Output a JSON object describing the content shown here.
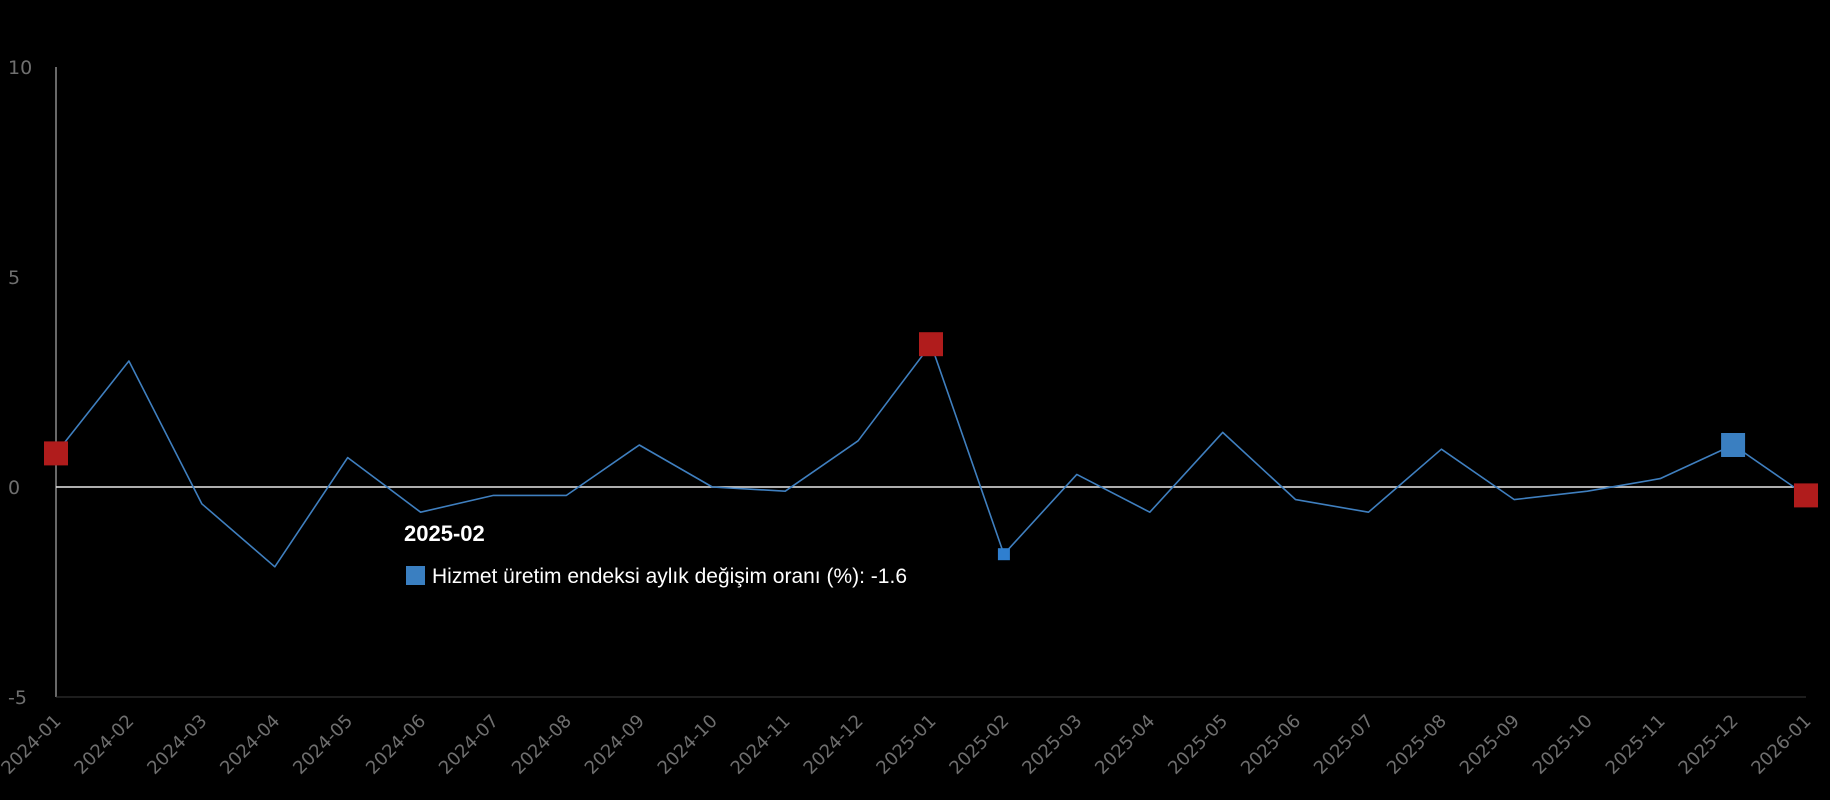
{
  "chart_data": {
    "type": "line",
    "title": "",
    "xlabel": "",
    "ylabel": "",
    "ylim": [
      -5,
      10
    ],
    "y_ticks": [
      "-5",
      "0",
      "5",
      "10"
    ],
    "grid": false,
    "x": [
      "2024-01",
      "2024-02",
      "2024-03",
      "2024-04",
      "2024-05",
      "2024-06",
      "2024-07",
      "2024-08",
      "2024-09",
      "2024-10",
      "2024-11",
      "2024-12",
      "2025-01",
      "2025-02",
      "2025-03",
      "2025-04",
      "2025-05",
      "2025-06",
      "2025-07",
      "2025-08",
      "2025-09",
      "2025-10",
      "2025-11",
      "2025-12",
      "2026-01"
    ],
    "series": [
      {
        "name": "Hizmet üretim endeksi aylık değişim oranı (%)",
        "color": "#3f7fbf",
        "values": [
          0.8,
          3.0,
          -0.4,
          -1.9,
          0.7,
          -0.6,
          -0.2,
          -0.2,
          1.0,
          0.0,
          -0.1,
          1.1,
          3.4,
          -1.6,
          0.3,
          -0.6,
          1.3,
          -0.3,
          -0.6,
          0.9,
          -0.3,
          -0.1,
          0.2,
          1.0,
          -0.2
        ]
      }
    ],
    "highlights": [
      {
        "index": 0,
        "kind": "min-max",
        "color": "#b01c1c"
      },
      {
        "index": 12,
        "kind": "min-max",
        "color": "#b01c1c"
      },
      {
        "index": 23,
        "kind": "selected",
        "color": "#3a7fc1"
      },
      {
        "index": 24,
        "kind": "min-max",
        "color": "#b01c1c"
      },
      {
        "index": 13,
        "kind": "hovered",
        "color": "#2f7fd0"
      }
    ],
    "tooltip": {
      "title": "2025-02",
      "label": "Hizmet üretim endeksi aylık değişim oranı (%): -1.6",
      "swatch_color": "#3a7fc1"
    }
  }
}
